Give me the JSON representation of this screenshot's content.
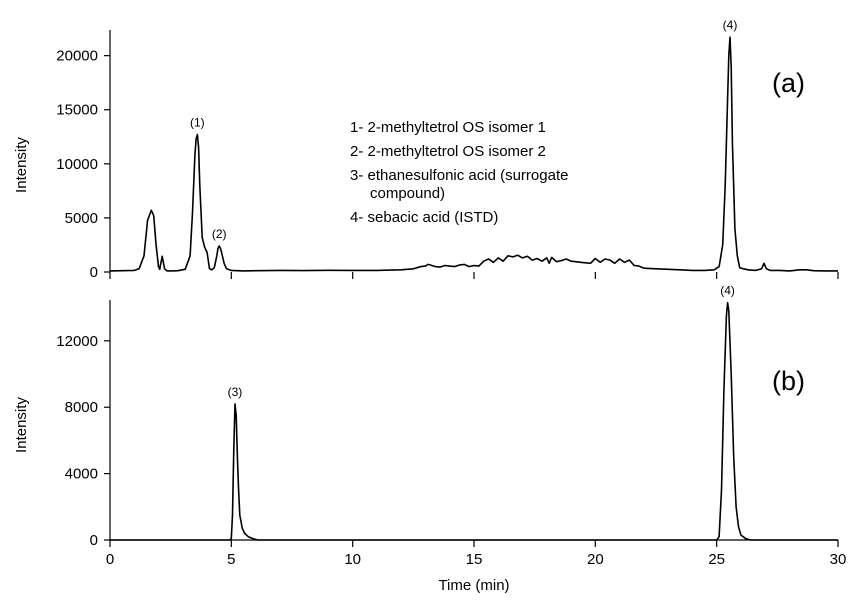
{
  "chart_data": [
    {
      "type": "line",
      "panel_label": "(a)",
      "xlabel": "",
      "ylabel": "Intensity",
      "xlim": [
        0,
        30
      ],
      "ylim": [
        0,
        22000
      ],
      "yticks": [
        0,
        5000,
        10000,
        15000,
        20000
      ],
      "xticks": [
        0,
        5,
        10,
        15,
        20,
        25,
        30
      ],
      "show_xtick_labels": false,
      "legend": {
        "placement": "top-center",
        "lines": [
          "1- 2-methyltetrol OS isomer 1",
          "2- 2-methyltetrol OS isomer 2",
          "3- ethanesulfonic acid (surrogate",
          "compound)",
          "4- sebacic acid (ISTD)"
        ]
      },
      "peak_labels": [
        {
          "text": "(1)",
          "x": 3.6,
          "y": 12700
        },
        {
          "text": "(2)",
          "x": 4.5,
          "y": 2400
        },
        {
          "text": "(4)",
          "x": 25.55,
          "y": 21700
        }
      ],
      "series": [
        {
          "x": [
            0,
            0.5,
            1.0,
            1.2,
            1.4,
            1.55,
            1.7,
            1.8,
            1.9,
            2.0,
            2.05,
            2.15,
            2.25,
            2.35,
            2.5,
            2.8,
            3.1,
            3.3,
            3.4,
            3.5,
            3.55,
            3.6,
            3.65,
            3.7,
            3.8,
            3.9,
            4.0,
            4.1,
            4.2,
            4.3,
            4.4,
            4.45,
            4.5,
            4.55,
            4.6,
            4.7,
            4.8,
            5.0,
            5.5,
            6,
            7,
            8,
            9,
            10,
            11,
            12,
            12.5,
            12.8,
            13.0,
            13.1,
            13.2,
            13.4,
            13.6,
            13.8,
            14.0,
            14.2,
            14.4,
            14.6,
            14.8,
            15.0,
            15.2,
            15.4,
            15.6,
            15.8,
            16.0,
            16.2,
            16.4,
            16.6,
            16.8,
            17.0,
            17.2,
            17.4,
            17.6,
            17.8,
            18.0,
            18.1,
            18.2,
            18.4,
            18.6,
            18.8,
            19.0,
            19.2,
            19.4,
            19.6,
            19.8,
            20.0,
            20.2,
            20.4,
            20.6,
            20.8,
            21.0,
            21.2,
            21.4,
            21.6,
            21.8,
            22.0,
            22.5,
            23,
            23.5,
            24,
            24.5,
            24.9,
            25.1,
            25.25,
            25.35,
            25.45,
            25.5,
            25.55,
            25.6,
            25.65,
            25.75,
            25.85,
            25.95,
            26.1,
            26.3,
            26.6,
            26.85,
            26.95,
            27.05,
            27.2,
            27.6,
            28,
            28.2,
            28.4,
            28.7,
            29,
            29.5,
            30
          ],
          "y": [
            100,
            120,
            150,
            300,
            1500,
            4800,
            5700,
            5200,
            2500,
            500,
            250,
            1450,
            300,
            100,
            100,
            120,
            250,
            1500,
            5500,
            10800,
            12300,
            12700,
            11500,
            8000,
            3200,
            2300,
            1800,
            300,
            200,
            400,
            1500,
            2200,
            2400,
            2200,
            1800,
            800,
            300,
            150,
            100,
            120,
            150,
            130,
            160,
            150,
            150,
            200,
            300,
            500,
            550,
            700,
            650,
            500,
            450,
            600,
            550,
            500,
            650,
            700,
            500,
            600,
            550,
            1000,
            1200,
            900,
            1300,
            1000,
            1500,
            1400,
            1550,
            1300,
            1450,
            1100,
            1250,
            1000,
            1300,
            800,
            1350,
            950,
            1050,
            1200,
            1000,
            950,
            900,
            850,
            800,
            1250,
            900,
            1200,
            1100,
            800,
            1200,
            900,
            1100,
            600,
            550,
            350,
            300,
            250,
            200,
            150,
            150,
            200,
            500,
            2500,
            8000,
            16000,
            20000,
            21700,
            19000,
            12000,
            4000,
            1500,
            400,
            300,
            200,
            150,
            300,
            800,
            300,
            150,
            150,
            100,
            150,
            200,
            200,
            120,
            100,
            100
          ]
        }
      ]
    },
    {
      "type": "line",
      "panel_label": "(b)",
      "xlabel": "Time (min)",
      "ylabel": "Intensity",
      "xlim": [
        0,
        30
      ],
      "ylim": [
        0,
        14400
      ],
      "yticks": [
        0,
        4000,
        8000,
        12000
      ],
      "xticks": [
        0,
        5,
        10,
        15,
        20,
        25,
        30
      ],
      "show_xtick_labels": true,
      "peak_labels": [
        {
          "text": "(3)",
          "x": 5.15,
          "y": 8200
        },
        {
          "text": "(4)",
          "x": 25.45,
          "y": 14300
        }
      ],
      "series": [
        {
          "x": [
            0,
            4.8,
            4.95,
            5.0,
            5.05,
            5.1,
            5.15,
            5.2,
            5.25,
            5.3,
            5.35,
            5.45,
            5.55,
            5.7,
            5.9,
            6.1,
            7,
            10,
            15,
            20,
            24.8,
            25.0,
            25.1,
            25.2,
            25.3,
            25.4,
            25.45,
            25.5,
            25.6,
            25.7,
            25.8,
            25.9,
            26.0,
            26.2,
            26.4,
            27,
            30
          ],
          "y": [
            0,
            0,
            0,
            100,
            1500,
            5500,
            8200,
            7500,
            5000,
            3000,
            1500,
            700,
            400,
            200,
            80,
            0,
            0,
            0,
            0,
            0,
            0,
            0,
            200,
            3000,
            9000,
            13500,
            14300,
            13800,
            10000,
            5000,
            2000,
            800,
            300,
            80,
            0,
            0,
            0
          ]
        }
      ]
    }
  ]
}
